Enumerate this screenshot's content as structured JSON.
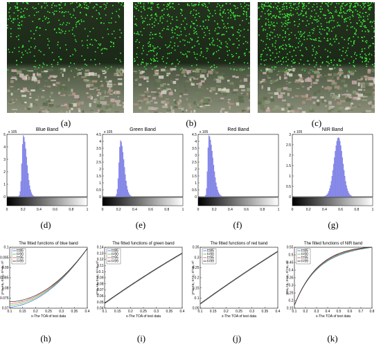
{
  "panel_labels": [
    "(a)",
    "(b)",
    "(c)",
    "(d)",
    "(e)",
    "(f)",
    "(g)",
    "(h)",
    "(i)",
    "(j)",
    "(k)"
  ],
  "colors": {
    "forest": "#1f2a1a",
    "detection": "#3df03a",
    "field": "#7e8a6a",
    "hist_bar": "#8a8cf0",
    "t85": "#3a5fd9",
    "t90": "#3cbf3c",
    "t95": "#e04545",
    "t99": "#202020"
  },
  "histograms": [
    {
      "title": "Blue Band",
      "exponent": "x 10",
      "exp_power": "5",
      "y_ticks": [
        "5",
        "4",
        "3",
        "2",
        "1",
        "0"
      ],
      "x_ticks": [
        "0",
        "0.2",
        "0.4",
        "0.6",
        "0.8",
        "1"
      ]
    },
    {
      "title": "Green Band",
      "exponent": "x 10",
      "exp_power": "5",
      "y_ticks": [
        "4.5",
        "4",
        "3.5",
        "3",
        "2.5",
        "2",
        "1.5",
        "1",
        "0.5",
        "0"
      ],
      "x_ticks": [
        "0",
        "0.2",
        "0.4",
        "0.6",
        "0.8",
        "1"
      ]
    },
    {
      "title": "Red Band",
      "exponent": "x 10",
      "exp_power": "5",
      "y_ticks": [
        "4.5",
        "4",
        "3.5",
        "3",
        "2.5",
        "2",
        "1.5",
        "1",
        "0.5",
        "0"
      ],
      "x_ticks": [
        "0",
        "0.2",
        "0.4",
        "0.6",
        "0.8",
        "1"
      ]
    },
    {
      "title": "NIR Band",
      "exponent": "x 10",
      "exp_power": "5",
      "y_ticks": [
        "3",
        "2.5",
        "2",
        "1.5",
        "1",
        "0.5",
        "0"
      ],
      "x_ticks": [
        "0",
        "0.2",
        "0.4",
        "0.6",
        "0.8",
        "1"
      ]
    }
  ],
  "fit_plots": [
    {
      "title": "The fitted functions of blue band",
      "xlabel": "x-The TOA of test data",
      "ylabel": "y=a₀+a₁·x+a₂·x²+a₃·x³",
      "legend": [
        "t=85",
        "t=90",
        "t=95",
        "t=99"
      ],
      "x_ticks": [
        "0.1",
        "0.15",
        "0.2",
        "0.25",
        "0.3",
        "0.35",
        "0.4"
      ],
      "y_ticks": [
        "0.1",
        "0.095",
        "0.09",
        "0.085",
        "0.08",
        "0.075",
        "0.07"
      ]
    },
    {
      "title": "The fitted functions of green band",
      "xlabel": "x-The TOA of test data",
      "ylabel": "y=a₀+a₁·x+a₂·x²+a₃·x³",
      "legend": [
        "t=85",
        "t=90",
        "t=95",
        "t=99"
      ],
      "x_ticks": [
        "0.1",
        "0.15",
        "0.2",
        "0.25",
        "0.3",
        "0.35",
        "0.4"
      ],
      "y_ticks": [
        "0.14",
        "0.13",
        "0.12",
        "0.11",
        "0.1",
        "0.09",
        "0.08",
        "0.07",
        "0.06",
        "0.05",
        "0.04"
      ]
    },
    {
      "title": "The fitted functions of red band",
      "xlabel": "x-The TOA of test data",
      "ylabel": "y=a₀+a₁·x+a₂·x²+a₃·x³",
      "legend": [
        "t=85",
        "t=90",
        "t=95",
        "t=99"
      ],
      "x_ticks": [
        "0.1",
        "0.15",
        "0.2",
        "0.25",
        "0.3",
        "0.35",
        "0.4"
      ],
      "y_ticks": [
        "0.35",
        "0.3",
        "0.25",
        "0.2",
        "0.15",
        "0.1",
        "0.05"
      ]
    },
    {
      "title": "The fitted functions of NIR band",
      "xlabel": "x-The TOA of test data",
      "ylabel": "y=a₀+a₁·x+a₂·x²+a₃·x³",
      "legend": [
        "t=85",
        "t=90",
        "t=95",
        "t=99"
      ],
      "x_ticks": [
        "0.1",
        "0.2",
        "0.3",
        "0.4",
        "0.5",
        "0.6",
        "0.7",
        "0.8"
      ],
      "y_ticks": [
        "0.55",
        "0.5",
        "0.45",
        "0.4",
        "0.35",
        "0.3",
        "0.25",
        "0.2",
        "0.15"
      ]
    }
  ]
}
